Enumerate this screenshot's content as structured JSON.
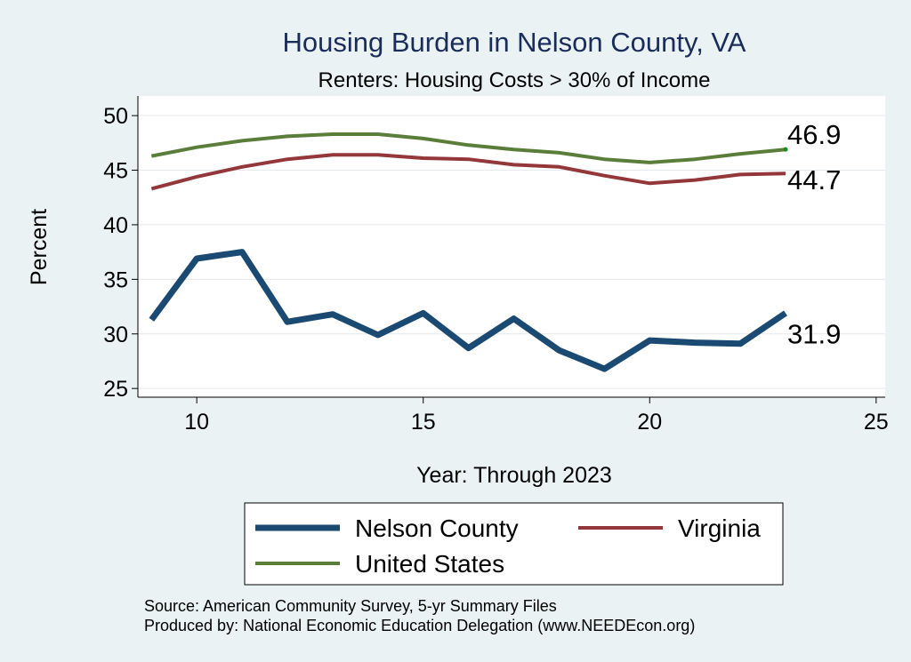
{
  "chart_data": {
    "type": "line",
    "title": "Housing Burden in Nelson County, VA",
    "subtitle": "Renters: Housing Costs > 30% of Income",
    "xlabel": "Year: Through 2023",
    "ylabel": "Percent",
    "xlim": [
      8.7,
      25.2
    ],
    "ylim": [
      24.2,
      51.8
    ],
    "xticks": [
      10,
      15,
      20,
      25
    ],
    "yticks": [
      25,
      30,
      35,
      40,
      45,
      50
    ],
    "grid": true,
    "legend_position": "bottom",
    "series": [
      {
        "name": "Nelson County",
        "color": "#1a4a72",
        "x": [
          9,
          10,
          11,
          12,
          13,
          14,
          15,
          16,
          17,
          18,
          19,
          20,
          21,
          22,
          23
        ],
        "values": [
          31.3,
          36.9,
          37.5,
          31.1,
          31.8,
          29.9,
          31.9,
          28.7,
          31.4,
          28.5,
          26.8,
          29.4,
          29.2,
          29.1,
          31.9
        ],
        "end_label": "31.9"
      },
      {
        "name": "Virginia",
        "color": "#93373b",
        "x": [
          9,
          10,
          11,
          12,
          13,
          14,
          15,
          16,
          17,
          18,
          19,
          20,
          21,
          22,
          23
        ],
        "values": [
          43.3,
          44.4,
          45.3,
          46.0,
          46.4,
          46.4,
          46.1,
          46.0,
          45.5,
          45.3,
          44.5,
          43.8,
          44.1,
          44.6,
          44.7
        ],
        "end_label": "44.7"
      },
      {
        "name": "United States",
        "color": "#5a7d3a",
        "x": [
          9,
          10,
          11,
          12,
          13,
          14,
          15,
          16,
          17,
          18,
          19,
          20,
          21,
          22,
          23
        ],
        "values": [
          46.3,
          47.1,
          47.7,
          48.1,
          48.3,
          48.3,
          47.9,
          47.3,
          46.9,
          46.6,
          46.0,
          45.7,
          46.0,
          46.5,
          46.9
        ],
        "end_label": "46.9"
      }
    ]
  },
  "footnotes": {
    "source": "Source: American Community Survey, 5-yr Summary Files",
    "produced": "Produced by: National Economic Education Delegation (www.NEEDEcon.org)"
  }
}
